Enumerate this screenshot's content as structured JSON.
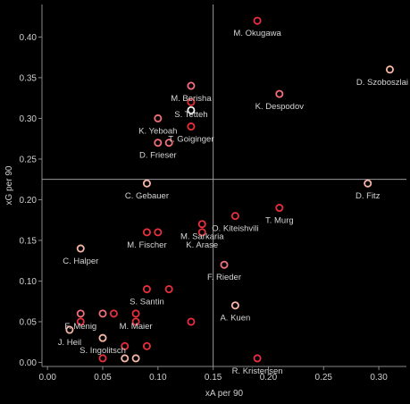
{
  "chart_data": {
    "type": "scatter",
    "title": "",
    "xlabel": "xA per 90",
    "ylabel": "xG per 90",
    "xlim": [
      -0.005,
      0.325
    ],
    "ylim": [
      -0.005,
      0.44
    ],
    "xticks": [
      0,
      0.05,
      0.1,
      0.15,
      0.2,
      0.25,
      0.3
    ],
    "xtick_labels": [
      "0.00",
      "0.05",
      "0.10",
      "0.15",
      "0.20",
      "0.25",
      "0.30"
    ],
    "yticks": [
      0,
      0.05,
      0.1,
      0.15,
      0.2,
      0.25,
      0.3,
      0.35,
      0.4
    ],
    "ytick_labels": [
      "0.00",
      "0.05",
      "0.10",
      "0.15",
      "0.20",
      "0.25",
      "0.30",
      "0.35",
      "0.40"
    ],
    "reference_lines": {
      "x": 0.15,
      "y": 0.225
    },
    "grid": false,
    "colors": {
      "background": "#000000",
      "axis": "#888888",
      "reference": "#9a9a9a",
      "red": "#e8303d",
      "pink": "#f36f7a",
      "peach": "#f6b8a6",
      "white": "#f4f4f4"
    },
    "points": [
      {
        "x": 0.19,
        "y": 0.42,
        "label": "M. Okugawa",
        "color": "red"
      },
      {
        "x": 0.31,
        "y": 0.36,
        "label": "D. Szoboszlai",
        "color": "peach"
      },
      {
        "x": 0.13,
        "y": 0.34,
        "label": "M. Berisha",
        "color": "pink"
      },
      {
        "x": 0.21,
        "y": 0.33,
        "label": "K. Despodov",
        "color": "pink"
      },
      {
        "x": 0.13,
        "y": 0.32,
        "label": "S. Tetteh",
        "color": "red"
      },
      {
        "x": 0.13,
        "y": 0.31,
        "label": "",
        "color": "white"
      },
      {
        "x": 0.1,
        "y": 0.3,
        "label": "K. Yeboah",
        "color": "pink"
      },
      {
        "x": 0.13,
        "y": 0.29,
        "label": "T. Goiginger",
        "color": "red"
      },
      {
        "x": 0.1,
        "y": 0.27,
        "label": "D. Frieser",
        "color": "pink"
      },
      {
        "x": 0.11,
        "y": 0.27,
        "label": "",
        "color": "pink"
      },
      {
        "x": 0.09,
        "y": 0.22,
        "label": "C. Gebauer",
        "color": "peach"
      },
      {
        "x": 0.29,
        "y": 0.22,
        "label": "D. Fitz",
        "color": "peach"
      },
      {
        "x": 0.21,
        "y": 0.19,
        "label": "T. Murg",
        "color": "red"
      },
      {
        "x": 0.17,
        "y": 0.18,
        "label": "O. Kiteishvili",
        "color": "red"
      },
      {
        "x": 0.14,
        "y": 0.17,
        "label": "M. Sarkaria",
        "color": "red"
      },
      {
        "x": 0.09,
        "y": 0.16,
        "label": "M. Fischer",
        "color": "red"
      },
      {
        "x": 0.1,
        "y": 0.16,
        "label": "",
        "color": "red"
      },
      {
        "x": 0.14,
        "y": 0.16,
        "label": "K. Arase",
        "color": "red"
      },
      {
        "x": 0.03,
        "y": 0.14,
        "label": "C. Halper",
        "color": "peach"
      },
      {
        "x": 0.16,
        "y": 0.12,
        "label": "F. Rieder",
        "color": "pink"
      },
      {
        "x": 0.09,
        "y": 0.09,
        "label": "S. Santin",
        "color": "red"
      },
      {
        "x": 0.11,
        "y": 0.09,
        "label": "",
        "color": "red"
      },
      {
        "x": 0.17,
        "y": 0.07,
        "label": "A. Kuen",
        "color": "peach"
      },
      {
        "x": 0.03,
        "y": 0.06,
        "label": "F. Menig",
        "color": "pink"
      },
      {
        "x": 0.05,
        "y": 0.06,
        "label": "",
        "color": "pink"
      },
      {
        "x": 0.06,
        "y": 0.06,
        "label": "",
        "color": "red"
      },
      {
        "x": 0.08,
        "y": 0.06,
        "label": "M. Maier",
        "color": "red"
      },
      {
        "x": 0.03,
        "y": 0.05,
        "label": "",
        "color": "red"
      },
      {
        "x": 0.08,
        "y": 0.05,
        "label": "",
        "color": "red"
      },
      {
        "x": 0.13,
        "y": 0.05,
        "label": "",
        "color": "red"
      },
      {
        "x": 0.02,
        "y": 0.04,
        "label": "J. Heil",
        "color": "peach"
      },
      {
        "x": 0.05,
        "y": 0.03,
        "label": "S. Ingolitsch",
        "color": "peach"
      },
      {
        "x": 0.07,
        "y": 0.02,
        "label": "",
        "color": "red"
      },
      {
        "x": 0.09,
        "y": 0.02,
        "label": "",
        "color": "red"
      },
      {
        "x": 0.05,
        "y": 0.005,
        "label": "",
        "color": "red"
      },
      {
        "x": 0.07,
        "y": 0.005,
        "label": "",
        "color": "peach"
      },
      {
        "x": 0.08,
        "y": 0.005,
        "label": "",
        "color": "peach"
      },
      {
        "x": 0.19,
        "y": 0.005,
        "label": "R. Kristensen",
        "color": "red"
      }
    ]
  }
}
